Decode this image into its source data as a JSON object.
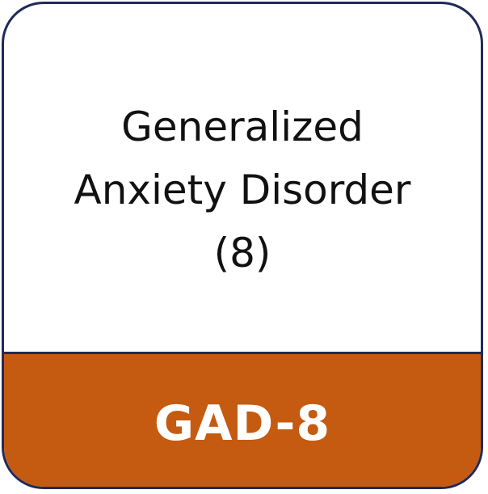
{
  "card": {
    "title_lines": [
      "Generalized",
      "Anxiety Disorder",
      "(8)"
    ],
    "code": "GAD-8",
    "colors": {
      "border": "#1f2a5a",
      "band": "#c55a11",
      "code_text": "#ffffff",
      "title_text": "#111111"
    }
  }
}
